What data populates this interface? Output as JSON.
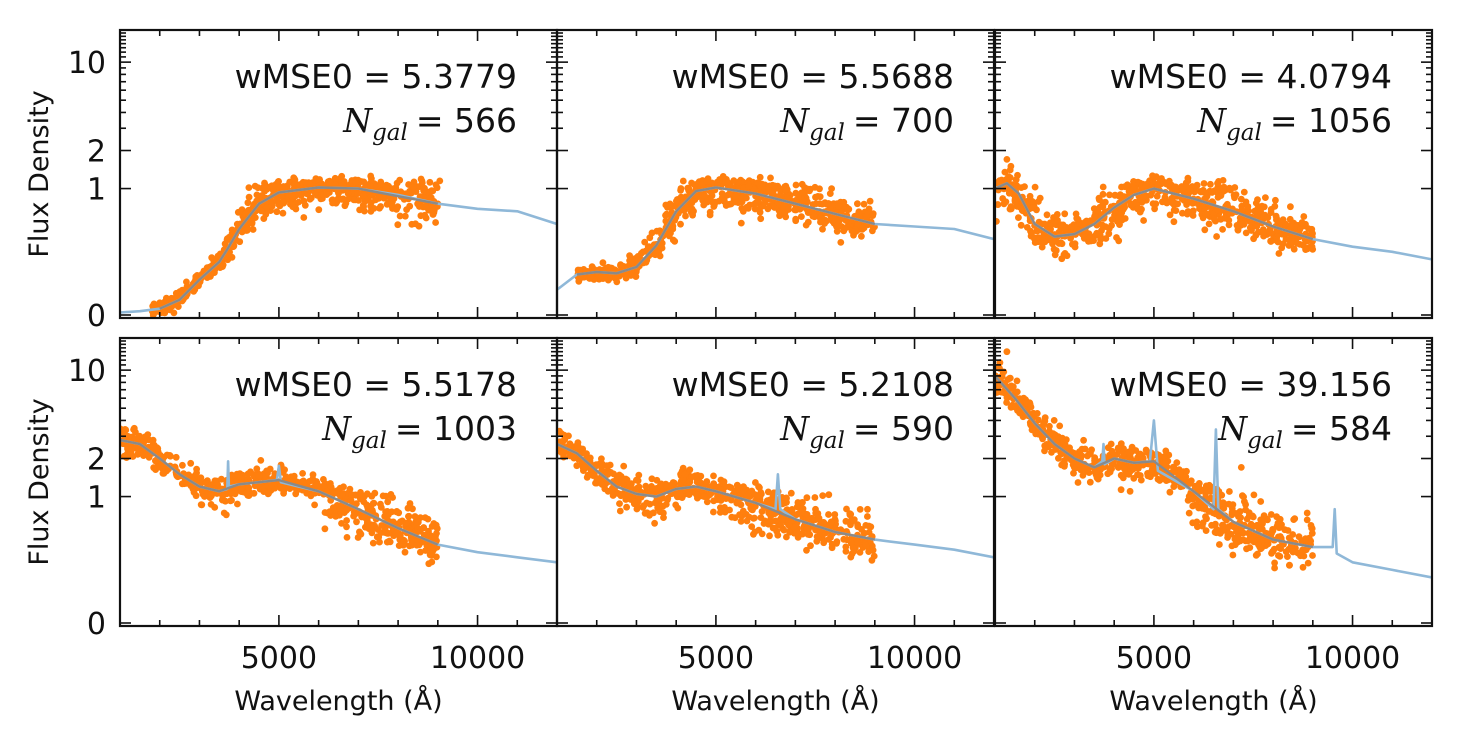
{
  "chart_data": {
    "type": "scatter",
    "layout": "2 rows x 3 columns, shared axes",
    "xlabel": "Wavelength (Å)",
    "ylabel": "Flux Density",
    "xlim": [
      1000,
      12000
    ],
    "xticks": [
      5000,
      10000
    ],
    "x_tick_labels": [
      "5000",
      "10000"
    ],
    "yscale": "symlog",
    "ylim": [
      0,
      17
    ],
    "yticks": [
      0,
      1,
      2,
      10
    ],
    "y_tick_labels": [
      "0",
      "1",
      "2",
      "10"
    ],
    "colors": {
      "points": "#ff7f0e",
      "model": "#8fb8d8",
      "median": "#8a8a8a"
    },
    "panels": [
      {
        "wmse_text": "wMSE0 = 5.3779",
        "ngal_prefix": "N",
        "ngal_sub": "gal",
        "ngal_value": "= 566",
        "model": {
          "x": [
            1000,
            1500,
            2000,
            2500,
            3000,
            3500,
            3700,
            4000,
            4500,
            5000,
            6000,
            7000,
            8000,
            9000,
            10000,
            11000,
            12000
          ],
          "y": [
            0.02,
            0.03,
            0.05,
            0.12,
            0.28,
            0.42,
            0.52,
            0.68,
            0.88,
            0.97,
            1.02,
            1.0,
            0.95,
            0.88,
            0.84,
            0.82,
            0.72
          ]
        },
        "median": {
          "x": [
            2000,
            2500,
            3000,
            3500,
            3700,
            4000,
            4500,
            5000,
            6000,
            7000,
            8000,
            9000
          ],
          "y": [
            0.05,
            0.12,
            0.28,
            0.42,
            0.52,
            0.68,
            0.88,
            0.97,
            1.02,
            1.0,
            0.94,
            0.88
          ]
        },
        "scatter": {
          "x_start": 1800,
          "x_end": 9000,
          "spread": 0.09,
          "outliers": [
            [
              8400,
              1.13
            ],
            [
              8600,
              1.15
            ],
            [
              8800,
              1.12
            ],
            [
              9050,
              1.15
            ]
          ]
        }
      },
      {
        "wmse_text": "wMSE0 = 5.5688",
        "ngal_prefix": "N",
        "ngal_sub": "gal",
        "ngal_value": "= 700",
        "model": {
          "x": [
            1000,
            1500,
            2000,
            2500,
            3000,
            3500,
            4000,
            4500,
            5000,
            6000,
            7000,
            8000,
            9000,
            10000,
            11000,
            12000
          ],
          "y": [
            0.2,
            0.32,
            0.34,
            0.33,
            0.38,
            0.55,
            0.82,
            0.98,
            1.02,
            0.96,
            0.88,
            0.8,
            0.72,
            0.7,
            0.68,
            0.6
          ]
        },
        "median": {
          "x": [
            1500,
            2000,
            2500,
            3000,
            3500,
            4000,
            4500,
            5000,
            6000,
            7000,
            8000,
            9000
          ],
          "y": [
            0.32,
            0.34,
            0.33,
            0.38,
            0.55,
            0.82,
            0.98,
            1.02,
            0.96,
            0.88,
            0.8,
            0.72
          ]
        },
        "scatter": {
          "x_start": 1500,
          "x_end": 9000,
          "spread": 0.1,
          "outliers": []
        }
      },
      {
        "wmse_text": "wMSE0 = 4.0794",
        "ngal_prefix": "N",
        "ngal_sub": "gal",
        "ngal_value": "= 1056",
        "model": {
          "x": [
            1000,
            1300,
            1600,
            2000,
            2500,
            3000,
            3500,
            4000,
            4500,
            5000,
            6000,
            7000,
            8000,
            9000,
            10000,
            11000,
            12000
          ],
          "y": [
            1.0,
            1.1,
            0.96,
            0.72,
            0.62,
            0.64,
            0.72,
            0.85,
            0.95,
            1.0,
            0.92,
            0.82,
            0.7,
            0.6,
            0.54,
            0.5,
            0.44
          ]
        },
        "median": {
          "x": [
            1000,
            1300,
            1600,
            2000,
            2500,
            3000,
            3500,
            4000,
            4500,
            5000,
            6000,
            7000,
            8000,
            9000
          ],
          "y": [
            1.0,
            1.1,
            0.96,
            0.72,
            0.62,
            0.64,
            0.72,
            0.85,
            0.95,
            1.0,
            0.92,
            0.82,
            0.7,
            0.6
          ]
        },
        "scatter": {
          "x_start": 1000,
          "x_end": 9000,
          "spread": 0.12,
          "outliers": [
            [
              1300,
              1.7
            ],
            [
              1400,
              1.5
            ],
            [
              1250,
              1.35
            ],
            [
              6600,
              1.1
            ]
          ]
        }
      },
      {
        "wmse_text": "wMSE0 = 5.5178",
        "ngal_prefix": "N",
        "ngal_sub": "gal",
        "ngal_value": "= 1003",
        "model": {
          "x": [
            1000,
            1500,
            2000,
            2500,
            3000,
            3500,
            3700,
            3720,
            3740,
            4000,
            4500,
            4950,
            5000,
            5050,
            6000,
            7000,
            8000,
            9000,
            10000,
            11000,
            12000
          ],
          "y": [
            2.8,
            2.6,
            2.0,
            1.5,
            1.2,
            1.1,
            1.15,
            1.9,
            1.2,
            1.25,
            1.3,
            1.35,
            1.75,
            1.3,
            1.1,
            0.9,
            0.75,
            0.62,
            0.56,
            0.52,
            0.48
          ]
        },
        "median": {
          "x": [
            1000,
            1500,
            2000,
            2500,
            3000,
            3500,
            4000,
            4500,
            5000,
            6000,
            7000,
            8000,
            9000
          ],
          "y": [
            2.8,
            2.6,
            2.0,
            1.5,
            1.2,
            1.1,
            1.25,
            1.3,
            1.35,
            1.1,
            0.9,
            0.75,
            0.62
          ]
        },
        "scatter": {
          "x_start": 1000,
          "x_end": 9000,
          "spread": 0.12,
          "outliers": []
        }
      },
      {
        "wmse_text": "wMSE0 = 5.2108",
        "ngal_prefix": "N",
        "ngal_sub": "gal",
        "ngal_value": "= 590",
        "model": {
          "x": [
            1000,
            1500,
            2000,
            2500,
            3000,
            3500,
            4000,
            4500,
            5000,
            6000,
            6500,
            6560,
            6620,
            7000,
            8000,
            9000,
            10000,
            11000,
            12000
          ],
          "y": [
            2.6,
            2.2,
            1.6,
            1.2,
            1.05,
            1.0,
            1.15,
            1.2,
            1.1,
            0.95,
            0.9,
            1.5,
            0.9,
            0.82,
            0.72,
            0.66,
            0.62,
            0.58,
            0.52
          ]
        },
        "median": {
          "x": [
            1000,
            1500,
            2000,
            2500,
            3000,
            3500,
            4000,
            4500,
            5000,
            6000,
            7000,
            8000,
            9000
          ],
          "y": [
            2.6,
            2.2,
            1.6,
            1.2,
            1.05,
            1.0,
            1.15,
            1.2,
            1.1,
            0.95,
            0.82,
            0.72,
            0.66
          ]
        },
        "scatter": {
          "x_start": 1000,
          "x_end": 9000,
          "spread": 0.13,
          "outliers": []
        }
      },
      {
        "wmse_text": "wMSE0 = 39.156",
        "ngal_prefix": "N",
        "ngal_sub": "gal",
        "ngal_value": "= 584",
        "model": {
          "x": [
            1000,
            1500,
            2000,
            2500,
            3000,
            3500,
            3700,
            3730,
            3760,
            4000,
            4500,
            4900,
            5000,
            5100,
            6000,
            6500,
            6560,
            6620,
            7000,
            8000,
            9000,
            9500,
            9550,
            9600,
            10000,
            11000,
            12000
          ],
          "y": [
            9.0,
            6.0,
            3.8,
            2.6,
            2.0,
            1.7,
            1.9,
            2.6,
            1.8,
            2.0,
            1.85,
            1.9,
            4.0,
            1.6,
            1.1,
            0.9,
            3.4,
            0.9,
            0.8,
            0.66,
            0.6,
            0.6,
            0.9,
            0.55,
            0.48,
            0.42,
            0.36
          ]
        },
        "median": {
          "x": [
            1000,
            1500,
            2000,
            2500,
            3000,
            3500,
            4000,
            4500,
            5000,
            6000,
            7000,
            8000,
            9000
          ],
          "y": [
            9.0,
            6.0,
            3.8,
            2.6,
            2.0,
            1.7,
            2.0,
            1.85,
            1.9,
            1.1,
            0.8,
            0.66,
            0.6
          ]
        },
        "scatter": {
          "x_start": 1000,
          "x_end": 9000,
          "spread": 0.15,
          "outliers": [
            [
              1300,
              14.0
            ],
            [
              3400,
              1.3
            ],
            [
              4400,
              1.1
            ],
            [
              7200,
              1.7
            ]
          ]
        }
      }
    ]
  }
}
